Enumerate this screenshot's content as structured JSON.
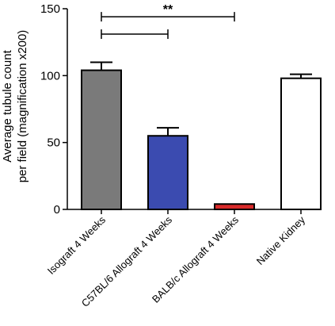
{
  "chart_data": {
    "type": "bar",
    "ylabel_lines": [
      "Average tubule count",
      "per field (magnification x200)"
    ],
    "ylim": [
      0,
      150
    ],
    "yticks": [
      0,
      50,
      100,
      150
    ],
    "categories": [
      "Isograft 4 Weeks",
      "C57BL/6 Allograft 4 Weeks",
      "BALB/c Allograft 4 Weeks",
      "Native Kidney"
    ],
    "values": [
      104,
      55,
      4,
      98
    ],
    "errors": [
      6,
      6,
      0,
      3
    ],
    "bar_colors": [
      "#7a7a7a",
      "#3b4bb0",
      "#d92b2b",
      "#ffffff"
    ],
    "annotations": [
      {
        "from": 0,
        "to": 2,
        "y": 144,
        "label": "**"
      },
      {
        "from": 0,
        "to": 1,
        "y": 131,
        "label": ""
      }
    ]
  }
}
